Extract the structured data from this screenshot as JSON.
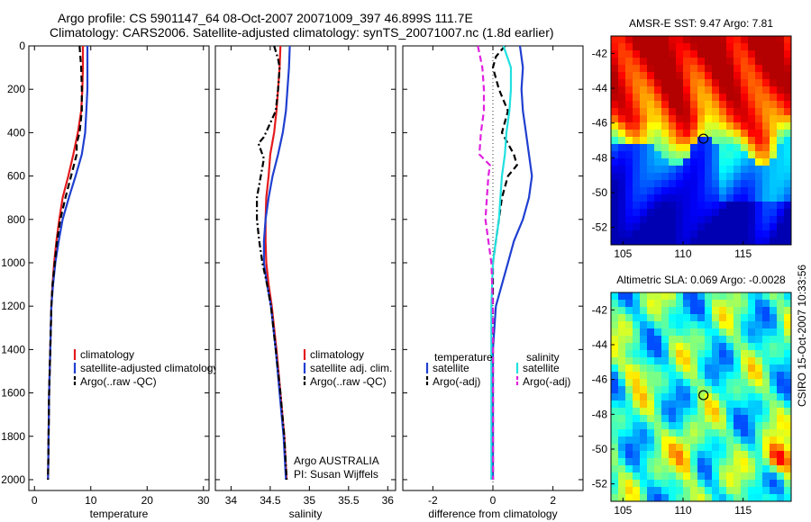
{
  "title": {
    "line1": "Argo profile: CS 5901147_64 08-Oct-2007 20071009_397 46.899S 111.7E",
    "line2": "Climatology: CARS2006. Satellite-adjusted climatology: synTS_20071007.nc (1.8d earlier)"
  },
  "stamp": "CSIRO 15-Oct-2007 10:33:56",
  "colors": {
    "climatology": "#e41a1c",
    "satellite": "#1f3fd0",
    "argo": "#000000",
    "sat_salinity": "#22e0e0",
    "argo_salinity": "#e020e0"
  },
  "chart_data": [
    {
      "type": "line",
      "id": "temperature",
      "xlabel": "temperature",
      "xlim": [
        -1,
        31
      ],
      "ylim": [
        2050,
        0
      ],
      "xticks": [
        0,
        10,
        20,
        30
      ],
      "yticks": [
        0,
        200,
        400,
        600,
        800,
        1000,
        1200,
        1400,
        1600,
        1800,
        2000
      ],
      "legend": [
        "climatology",
        "satellite-adjusted climatology",
        "Argo(..raw -QC)"
      ],
      "series": [
        {
          "name": "climatology",
          "color": "#e41a1c",
          "style": "solid",
          "points": [
            [
              8.6,
              0
            ],
            [
              8.6,
              100
            ],
            [
              8.5,
              200
            ],
            [
              8.3,
              300
            ],
            [
              7.7,
              400
            ],
            [
              6.9,
              500
            ],
            [
              6.0,
              600
            ],
            [
              5.0,
              700
            ],
            [
              4.4,
              800
            ],
            [
              3.9,
              900
            ],
            [
              3.5,
              1000
            ],
            [
              3.2,
              1100
            ],
            [
              3.0,
              1200
            ],
            [
              2.8,
              1400
            ],
            [
              2.6,
              1600
            ],
            [
              2.5,
              1800
            ],
            [
              2.4,
              2000
            ]
          ]
        },
        {
          "name": "satellite-adjusted climatology",
          "color": "#1f3fd0",
          "style": "solid",
          "points": [
            [
              9.4,
              0
            ],
            [
              9.4,
              100
            ],
            [
              9.4,
              200
            ],
            [
              9.2,
              300
            ],
            [
              9.0,
              400
            ],
            [
              8.4,
              500
            ],
            [
              7.3,
              600
            ],
            [
              6.1,
              700
            ],
            [
              5.0,
              800
            ],
            [
              4.3,
              900
            ],
            [
              3.7,
              1000
            ],
            [
              3.3,
              1100
            ],
            [
              3.0,
              1200
            ],
            [
              2.8,
              1400
            ],
            [
              2.6,
              1600
            ],
            [
              2.5,
              1800
            ],
            [
              2.4,
              2000
            ]
          ]
        },
        {
          "name": "Argo(..raw -QC)",
          "color": "#000000",
          "style": "dash",
          "points": [
            [
              8.0,
              0
            ],
            [
              8.3,
              100
            ],
            [
              8.4,
              200
            ],
            [
              8.4,
              300
            ],
            [
              8.0,
              400
            ],
            [
              7.5,
              450
            ],
            [
              7.5,
              500
            ],
            [
              6.5,
              600
            ],
            [
              5.5,
              700
            ],
            [
              4.6,
              800
            ],
            [
              4.0,
              900
            ],
            [
              3.6,
              1000
            ],
            [
              3.2,
              1100
            ],
            [
              3.0,
              1200
            ],
            [
              2.8,
              1400
            ],
            [
              2.6,
              1600
            ],
            [
              2.5,
              1800
            ],
            [
              2.4,
              2000
            ]
          ]
        }
      ]
    },
    {
      "type": "line",
      "id": "salinity",
      "xlabel": "salinity",
      "xlim": [
        33.8,
        36.1
      ],
      "ylim": [
        2050,
        0
      ],
      "xticks": [
        34,
        34.5,
        35,
        35.5,
        36
      ],
      "yticks": [
        0,
        200,
        400,
        600,
        800,
        1000,
        1200,
        1400,
        1600,
        1800,
        2000
      ],
      "legend": [
        "climatology",
        "satellite adj. clim.",
        "Argo(..raw -QC)"
      ],
      "annotation": [
        "Argo AUSTRALIA",
        "PI: Susan Wijffels"
      ],
      "series": [
        {
          "name": "climatology",
          "color": "#e41a1c",
          "style": "solid",
          "points": [
            [
              34.63,
              0
            ],
            [
              34.62,
              100
            ],
            [
              34.6,
              200
            ],
            [
              34.58,
              300
            ],
            [
              34.55,
              400
            ],
            [
              34.5,
              500
            ],
            [
              34.48,
              600
            ],
            [
              34.45,
              700
            ],
            [
              34.44,
              800
            ],
            [
              34.44,
              900
            ],
            [
              34.45,
              1000
            ],
            [
              34.48,
              1100
            ],
            [
              34.52,
              1200
            ],
            [
              34.58,
              1400
            ],
            [
              34.63,
              1600
            ],
            [
              34.68,
              1800
            ],
            [
              34.71,
              2000
            ]
          ]
        },
        {
          "name": "satellite adj. clim.",
          "color": "#1f3fd0",
          "style": "solid",
          "points": [
            [
              34.75,
              0
            ],
            [
              34.74,
              100
            ],
            [
              34.72,
              200
            ],
            [
              34.7,
              300
            ],
            [
              34.66,
              400
            ],
            [
              34.6,
              500
            ],
            [
              34.53,
              600
            ],
            [
              34.48,
              700
            ],
            [
              34.44,
              800
            ],
            [
              34.42,
              900
            ],
            [
              34.42,
              1000
            ],
            [
              34.46,
              1100
            ],
            [
              34.51,
              1200
            ],
            [
              34.57,
              1400
            ],
            [
              34.62,
              1600
            ],
            [
              34.67,
              1800
            ],
            [
              34.7,
              2000
            ]
          ]
        },
        {
          "name": "Argo(..raw -QC)",
          "color": "#000000",
          "style": "dashdot",
          "points": [
            [
              34.55,
              0
            ],
            [
              34.6,
              60
            ],
            [
              34.62,
              100
            ],
            [
              34.6,
              200
            ],
            [
              34.57,
              300
            ],
            [
              34.42,
              420
            ],
            [
              34.35,
              450
            ],
            [
              34.42,
              520
            ],
            [
              34.38,
              600
            ],
            [
              34.33,
              700
            ],
            [
              34.33,
              800
            ],
            [
              34.36,
              900
            ],
            [
              34.4,
              1000
            ],
            [
              34.46,
              1100
            ],
            [
              34.51,
              1200
            ],
            [
              34.57,
              1400
            ],
            [
              34.63,
              1600
            ],
            [
              34.68,
              1800
            ],
            [
              34.71,
              2000
            ]
          ]
        }
      ]
    },
    {
      "type": "line",
      "id": "difference",
      "xlabel": "difference from climatology",
      "xlim": [
        -3,
        3
      ],
      "ylim": [
        2050,
        0
      ],
      "xticks": [
        -2,
        0,
        2
      ],
      "yticks": [
        0,
        200,
        400,
        600,
        800,
        1000,
        1200,
        1400,
        1600,
        1800,
        2000
      ],
      "legend_headers": [
        "temperature",
        "salinity"
      ],
      "legend": [
        "satellite",
        "Argo(-adj)",
        "satellite",
        "Argo(-adj)"
      ],
      "series": [
        {
          "name": "temperature satellite",
          "color": "#1f3fd0",
          "style": "solid",
          "points": [
            [
              0.9,
              0
            ],
            [
              1.0,
              100
            ],
            [
              0.95,
              200
            ],
            [
              1.0,
              300
            ],
            [
              1.1,
              400
            ],
            [
              1.2,
              500
            ],
            [
              1.3,
              600
            ],
            [
              1.2,
              700
            ],
            [
              1.0,
              800
            ],
            [
              0.7,
              900
            ],
            [
              0.5,
              1000
            ],
            [
              0.3,
              1100
            ],
            [
              0.1,
              1200
            ],
            [
              0.0,
              1400
            ],
            [
              0.0,
              1600
            ],
            [
              0.0,
              1800
            ],
            [
              0.0,
              2000
            ]
          ]
        },
        {
          "name": "temperature Argo(-adj)",
          "color": "#000000",
          "style": "dash",
          "points": [
            [
              0.4,
              0
            ],
            [
              0.1,
              50
            ],
            [
              0.0,
              100
            ],
            [
              0.2,
              200
            ],
            [
              0.5,
              300
            ],
            [
              0.3,
              400
            ],
            [
              0.7,
              500
            ],
            [
              0.8,
              550
            ],
            [
              0.5,
              600
            ],
            [
              0.3,
              700
            ],
            [
              0.2,
              800
            ],
            [
              0.1,
              900
            ],
            [
              0.0,
              1000
            ],
            [
              0.0,
              1200
            ],
            [
              0.0,
              1600
            ],
            [
              0.0,
              2000
            ]
          ]
        },
        {
          "name": "salinity satellite",
          "color": "#22e0e0",
          "style": "solid",
          "points": [
            [
              0.35,
              0
            ],
            [
              0.6,
              100
            ],
            [
              0.6,
              200
            ],
            [
              0.55,
              300
            ],
            [
              0.45,
              400
            ],
            [
              0.4,
              500
            ],
            [
              0.3,
              600
            ],
            [
              0.25,
              700
            ],
            [
              0.2,
              800
            ],
            [
              0.1,
              900
            ],
            [
              0.0,
              1000
            ],
            [
              -0.05,
              1200
            ],
            [
              -0.05,
              1400
            ],
            [
              -0.05,
              1600
            ],
            [
              -0.05,
              1800
            ],
            [
              -0.05,
              2000
            ]
          ]
        },
        {
          "name": "salinity Argo(-adj)",
          "color": "#e020e0",
          "style": "dash",
          "points": [
            [
              -0.5,
              0
            ],
            [
              -0.35,
              100
            ],
            [
              -0.3,
              200
            ],
            [
              -0.3,
              300
            ],
            [
              -0.4,
              400
            ],
            [
              -0.45,
              500
            ],
            [
              -0.1,
              550
            ],
            [
              -0.15,
              600
            ],
            [
              -0.2,
              700
            ],
            [
              -0.25,
              800
            ],
            [
              -0.15,
              900
            ],
            [
              -0.05,
              1000
            ],
            [
              0.0,
              1200
            ],
            [
              0.0,
              1600
            ],
            [
              0.0,
              2000
            ]
          ]
        }
      ]
    },
    {
      "type": "heatmap",
      "id": "sst",
      "title": "AMSR-E SST: 9.47 Argo: 7.81",
      "xlim": [
        104,
        119
      ],
      "ylim": [
        -53,
        -41
      ],
      "xticks": [
        105,
        110,
        115
      ],
      "yticks": [
        -42,
        -44,
        -46,
        -48,
        -50,
        -52
      ],
      "marker": [
        111.7,
        -46.9
      ]
    },
    {
      "type": "heatmap",
      "id": "sla",
      "title": "Altimetric SLA: 0.069 Argo: -0.0028",
      "xlim": [
        104,
        119
      ],
      "ylim": [
        -53,
        -41
      ],
      "xticks": [
        105,
        110,
        115
      ],
      "yticks": [
        -42,
        -44,
        -46,
        -48,
        -50,
        -52
      ],
      "marker": [
        111.7,
        -46.9
      ]
    }
  ]
}
